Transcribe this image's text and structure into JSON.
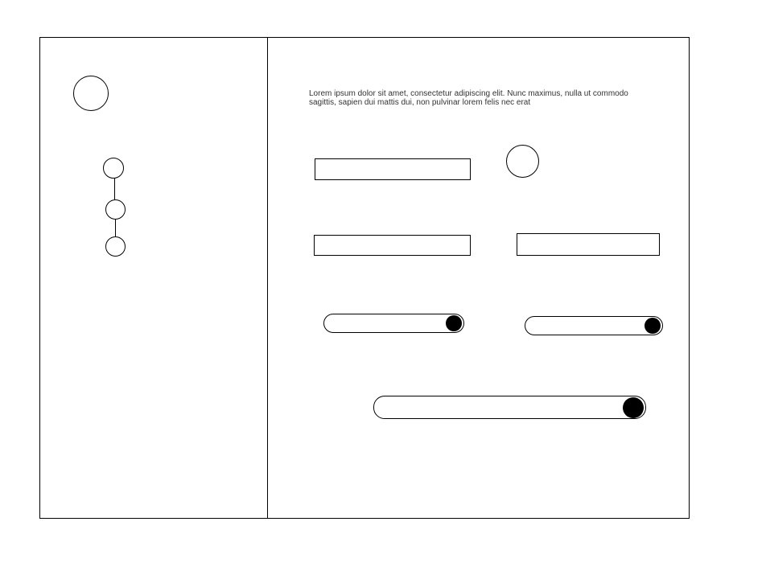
{
  "main": {
    "paragraph": "Lorem ipsum dolor sit amet, consectetur adipiscing elit. Nunc maximus, nulla ut commodo sagittis, sapien dui mattis dui, non pulvinar lorem felis nec erat"
  },
  "sliders": [
    {
      "value": 1.0
    },
    {
      "value": 1.0
    },
    {
      "value": 1.0
    }
  ]
}
